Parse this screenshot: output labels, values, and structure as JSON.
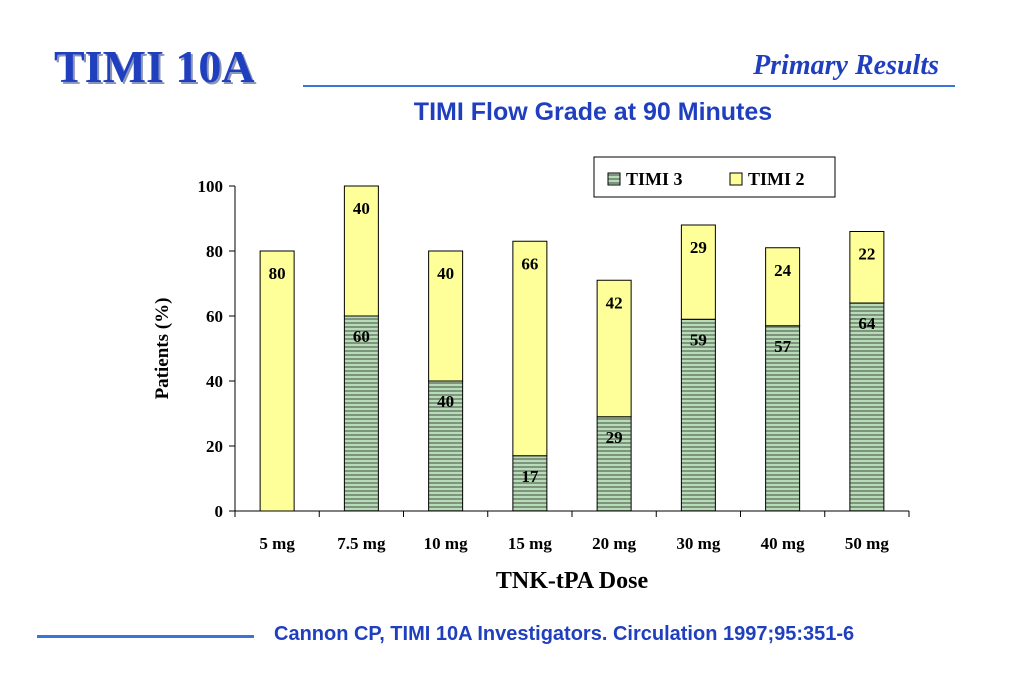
{
  "header": {
    "logo_text": "TIMI 10A",
    "section_title": "Primary Results",
    "chart_title": "TIMI Flow Grade at 90 Minutes"
  },
  "footer": {
    "citation": "Cannon CP, TIMI 10A Investigators. Circulation 1997;95:351-6"
  },
  "colors": {
    "title_blue": "#1f3fbf",
    "rule_blue": "#3b74d9",
    "timi3_green": "#b9dcb8",
    "timi3_dark": "#6f8a6f",
    "timi2_yellow": "#ffff99"
  },
  "chart_data": {
    "type": "bar",
    "stacked": true,
    "title": "TIMI Flow Grade at 90 Minutes",
    "xlabel": "TNK-tPA Dose",
    "ylabel": "Patients (%)",
    "ylim": [
      0,
      100
    ],
    "yticks": [
      0,
      20,
      40,
      60,
      80,
      100
    ],
    "categories": [
      "5 mg",
      "7.5 mg",
      "10 mg",
      "15 mg",
      "20 mg",
      "30 mg",
      "40 mg",
      "50 mg"
    ],
    "series": [
      {
        "name": "TIMI 3",
        "values": [
          0,
          60,
          40,
          17,
          29,
          59,
          57,
          64
        ],
        "labels": [
          null,
          "60",
          "40",
          "17",
          "29",
          "59",
          "57",
          "64"
        ]
      },
      {
        "name": "TIMI 2",
        "values": [
          80,
          40,
          40,
          66,
          42,
          29,
          24,
          22
        ],
        "labels": [
          "80",
          "40",
          "40",
          "66",
          "42",
          "29",
          "24",
          "22"
        ]
      }
    ],
    "legend": "top-right",
    "grid": false
  }
}
